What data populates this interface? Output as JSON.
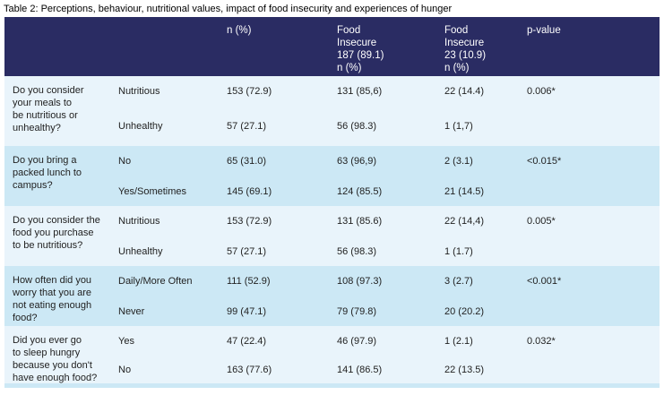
{
  "title": "Table 2: Perceptions, behaviour, nutritional values, impact of food insecurity and experiences of hunger",
  "colors": {
    "header_bg": "#2a2c63",
    "stripe_light": "#e9f4fb",
    "stripe_dark": "#cce8f5",
    "header_text": "#ffffff",
    "body_text": "#222222"
  },
  "header": {
    "col_n": "n (%)",
    "col_fi_major": "Food\nInsecure\n187 (89.1)",
    "col_fi_major_sub": "n  (%)",
    "col_fi_minor": "Food\nInsecure\n23  (10.9)",
    "col_fi_minor_sub": "n  (%)",
    "col_p": "p-value"
  },
  "groups": [
    {
      "question": "Do you consider\nyour meals to\nbe nutritious or\nunhealthy?",
      "rows": [
        {
          "category": "Nutritious",
          "n": "153 (72.9)",
          "fi_major": "131 (85,6)",
          "fi_minor": "22 (14.4)",
          "p": "0.006*"
        },
        {
          "category": "Unhealthy",
          "n": "57 (27.1)",
          "fi_major": "56 (98.3)",
          "fi_minor": "1 (1,7)",
          "p": ""
        }
      ]
    },
    {
      "question": "Do you bring a\npacked lunch to\ncampus?",
      "rows": [
        {
          "category": "No",
          "n": "65 (31.0)",
          "fi_major": "63 (96,9)",
          "fi_minor": "2 (3.1)",
          "p": "<0.015*"
        },
        {
          "category": "Yes/Sometimes",
          "n": "145 (69.1)",
          "fi_major": "124 (85.5)",
          "fi_minor": "21 (14.5)",
          "p": ""
        }
      ]
    },
    {
      "question": "Do you consider the\nfood you purchase\nto be nutritious?",
      "rows": [
        {
          "category": "Nutritious",
          "n": "153 (72.9)",
          "fi_major": "131 (85.6)",
          "fi_minor": "22 (14,4)",
          "p": "0.005*"
        },
        {
          "category": "Unhealthy",
          "n": "57 (27.1)",
          "fi_major": "56 (98.3)",
          "fi_minor": "1 (1.7)",
          "p": ""
        }
      ]
    },
    {
      "question": "How often did you\nworry that you are\nnot eating enough\nfood?",
      "rows": [
        {
          "category": "Daily/More Often",
          "n": "111 (52.9)",
          "fi_major": "108 (97.3)",
          "fi_minor": "3 (2.7)",
          "p": "<0.001*"
        },
        {
          "category": "Never",
          "n": "99 (47.1)",
          "fi_major": "79 (79.8)",
          "fi_minor": "20 (20.2)",
          "p": ""
        }
      ]
    },
    {
      "question": "Did you ever go\nto sleep hungry\nbecause you don't\nhave enough food?",
      "rows": [
        {
          "category": "Yes",
          "n": "47 (22.4)",
          "fi_major": "46 (97.9)",
          "fi_minor": "1 (2.1)",
          "p": "0.032*"
        },
        {
          "category": "No",
          "n": "163 (77.6)",
          "fi_major": "141 (86.5)",
          "fi_minor": "22 (13.5)",
          "p": ""
        }
      ]
    }
  ]
}
